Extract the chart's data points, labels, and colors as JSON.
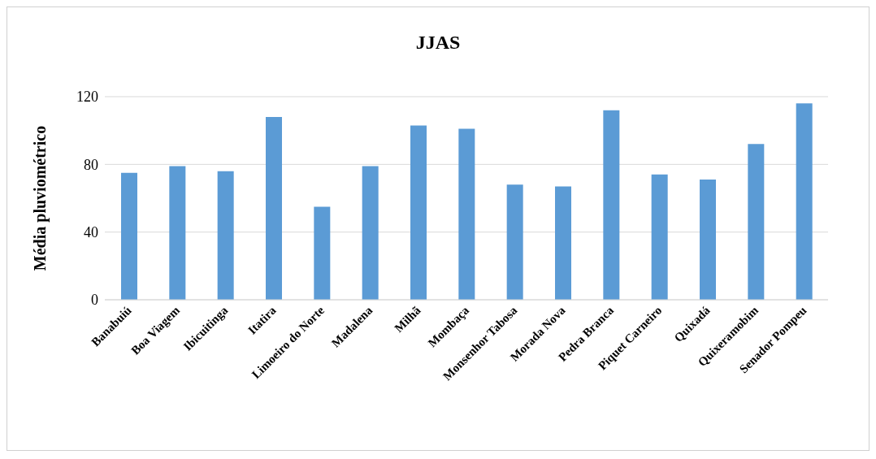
{
  "chart_data": {
    "type": "bar",
    "title": "JJAS",
    "ylabel": "Média pluviométrico",
    "categories": [
      "Banabuiú",
      "Boa Viagem",
      "Ibicuitinga",
      "Itatira",
      "Limoeiro do Norte",
      "Madalena",
      "Milhã",
      "Mombaça",
      "Monsenhor Tabosa",
      "Morada Nova",
      "Pedra Branca",
      "Piquet Carneiro",
      "Quixadá",
      "Quixeramobim",
      "Senador Pompeu"
    ],
    "values": [
      75,
      79,
      76,
      108,
      55,
      79,
      103,
      101,
      68,
      67,
      112,
      74,
      71,
      92,
      116
    ],
    "color": "#5b9bd5",
    "ylim": [
      0,
      120
    ],
    "yticks": [
      0,
      40,
      80,
      120
    ],
    "grid": "y",
    "legend": false
  }
}
